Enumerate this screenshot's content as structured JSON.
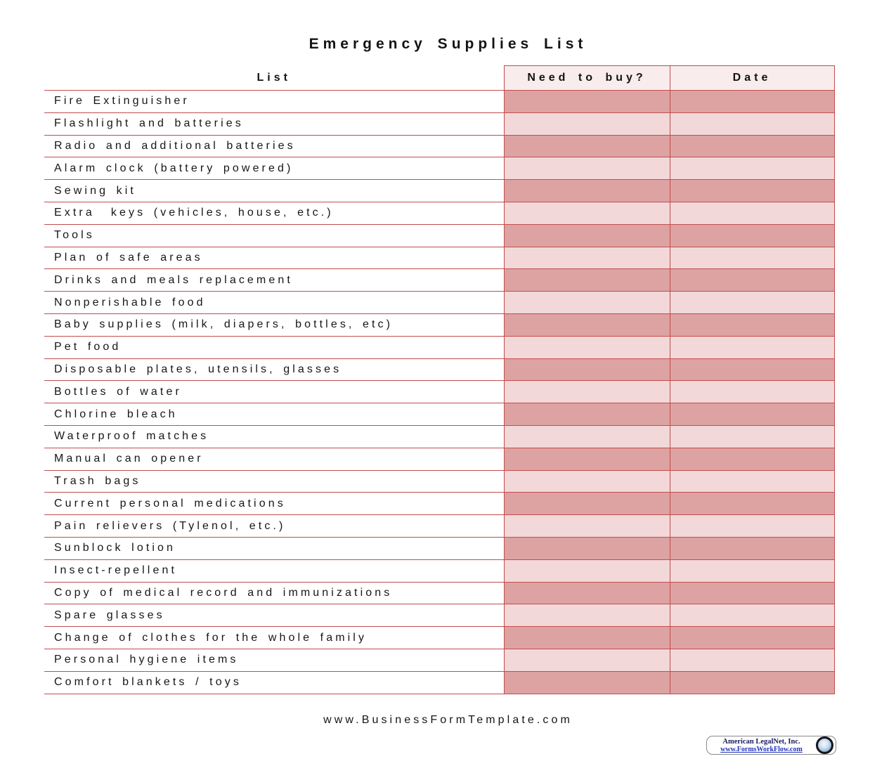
{
  "title": "Emergency Supplies List",
  "table": {
    "headers": [
      "List",
      "Need to buy?",
      "Date"
    ],
    "items": [
      "Fire Extinguisher",
      "Flashlight and batteries",
      "Radio and additional batteries",
      "Alarm clock (battery powered)",
      "Sewing kit",
      "Extra  keys (vehicles, house, etc.)",
      "Tools",
      "Plan of safe areas",
      "Drinks and meals replacement",
      "Nonperishable food",
      "Baby supplies (milk, diapers, bottles, etc)",
      "Pet food",
      "Disposable plates, utensils, glasses",
      "Bottles of water",
      "Chlorine bleach",
      "Waterproof matches",
      "Manual can opener",
      "Trash bags",
      "Current personal medications",
      "Pain relievers (Tylenol, etc.)",
      "Sunblock lotion",
      "Insect-repellent",
      "Copy of medical record and immunizations",
      "Spare glasses",
      "Change of clothes for the whole family",
      "Personal hygiene items",
      "Comfort blankets / toys"
    ]
  },
  "footer": {
    "url": "www.BusinessFormTemplate.com"
  },
  "logo": {
    "company": "American LegalNet, Inc.",
    "link": "www.FormsWorkFlow.com",
    "icon": "globe-icon"
  },
  "colors": {
    "border": "#c24d4d",
    "row_dark": "#dda3a3",
    "row_light": "#f2d8d8",
    "header_bg": "#f8ecec"
  }
}
